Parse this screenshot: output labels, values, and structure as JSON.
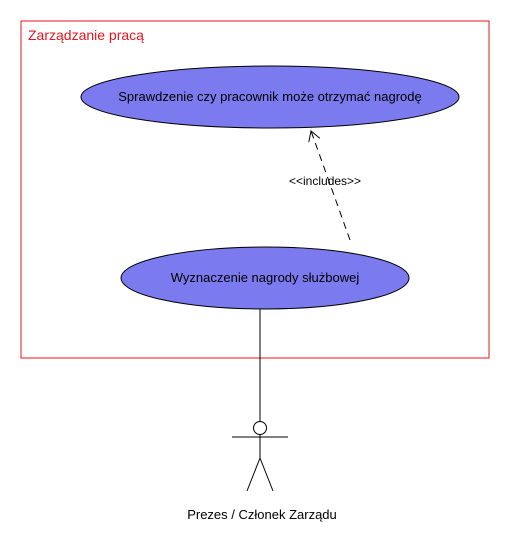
{
  "diagram": {
    "type": "uml-use-case",
    "system_boundary": {
      "title": "Zarządzanie pracą",
      "border_color": "#e8141e"
    },
    "use_cases": [
      {
        "id": "uc-check-eligibility",
        "label": "Sprawdzenie czy pracownik może otrzymać nagrodę",
        "fill_color": "#7b7bef"
      },
      {
        "id": "uc-assign-award",
        "label": "Wyznaczenie nagrody służbowej",
        "fill_color": "#7b7bef"
      }
    ],
    "relationships": [
      {
        "from": "uc-assign-award",
        "to": "uc-check-eligibility",
        "type": "include",
        "label": "<<includes>>"
      },
      {
        "from": "actor-board",
        "to": "uc-assign-award",
        "type": "association"
      }
    ],
    "actor": {
      "id": "actor-board",
      "label": "Prezes / Członek Zarządu"
    }
  }
}
